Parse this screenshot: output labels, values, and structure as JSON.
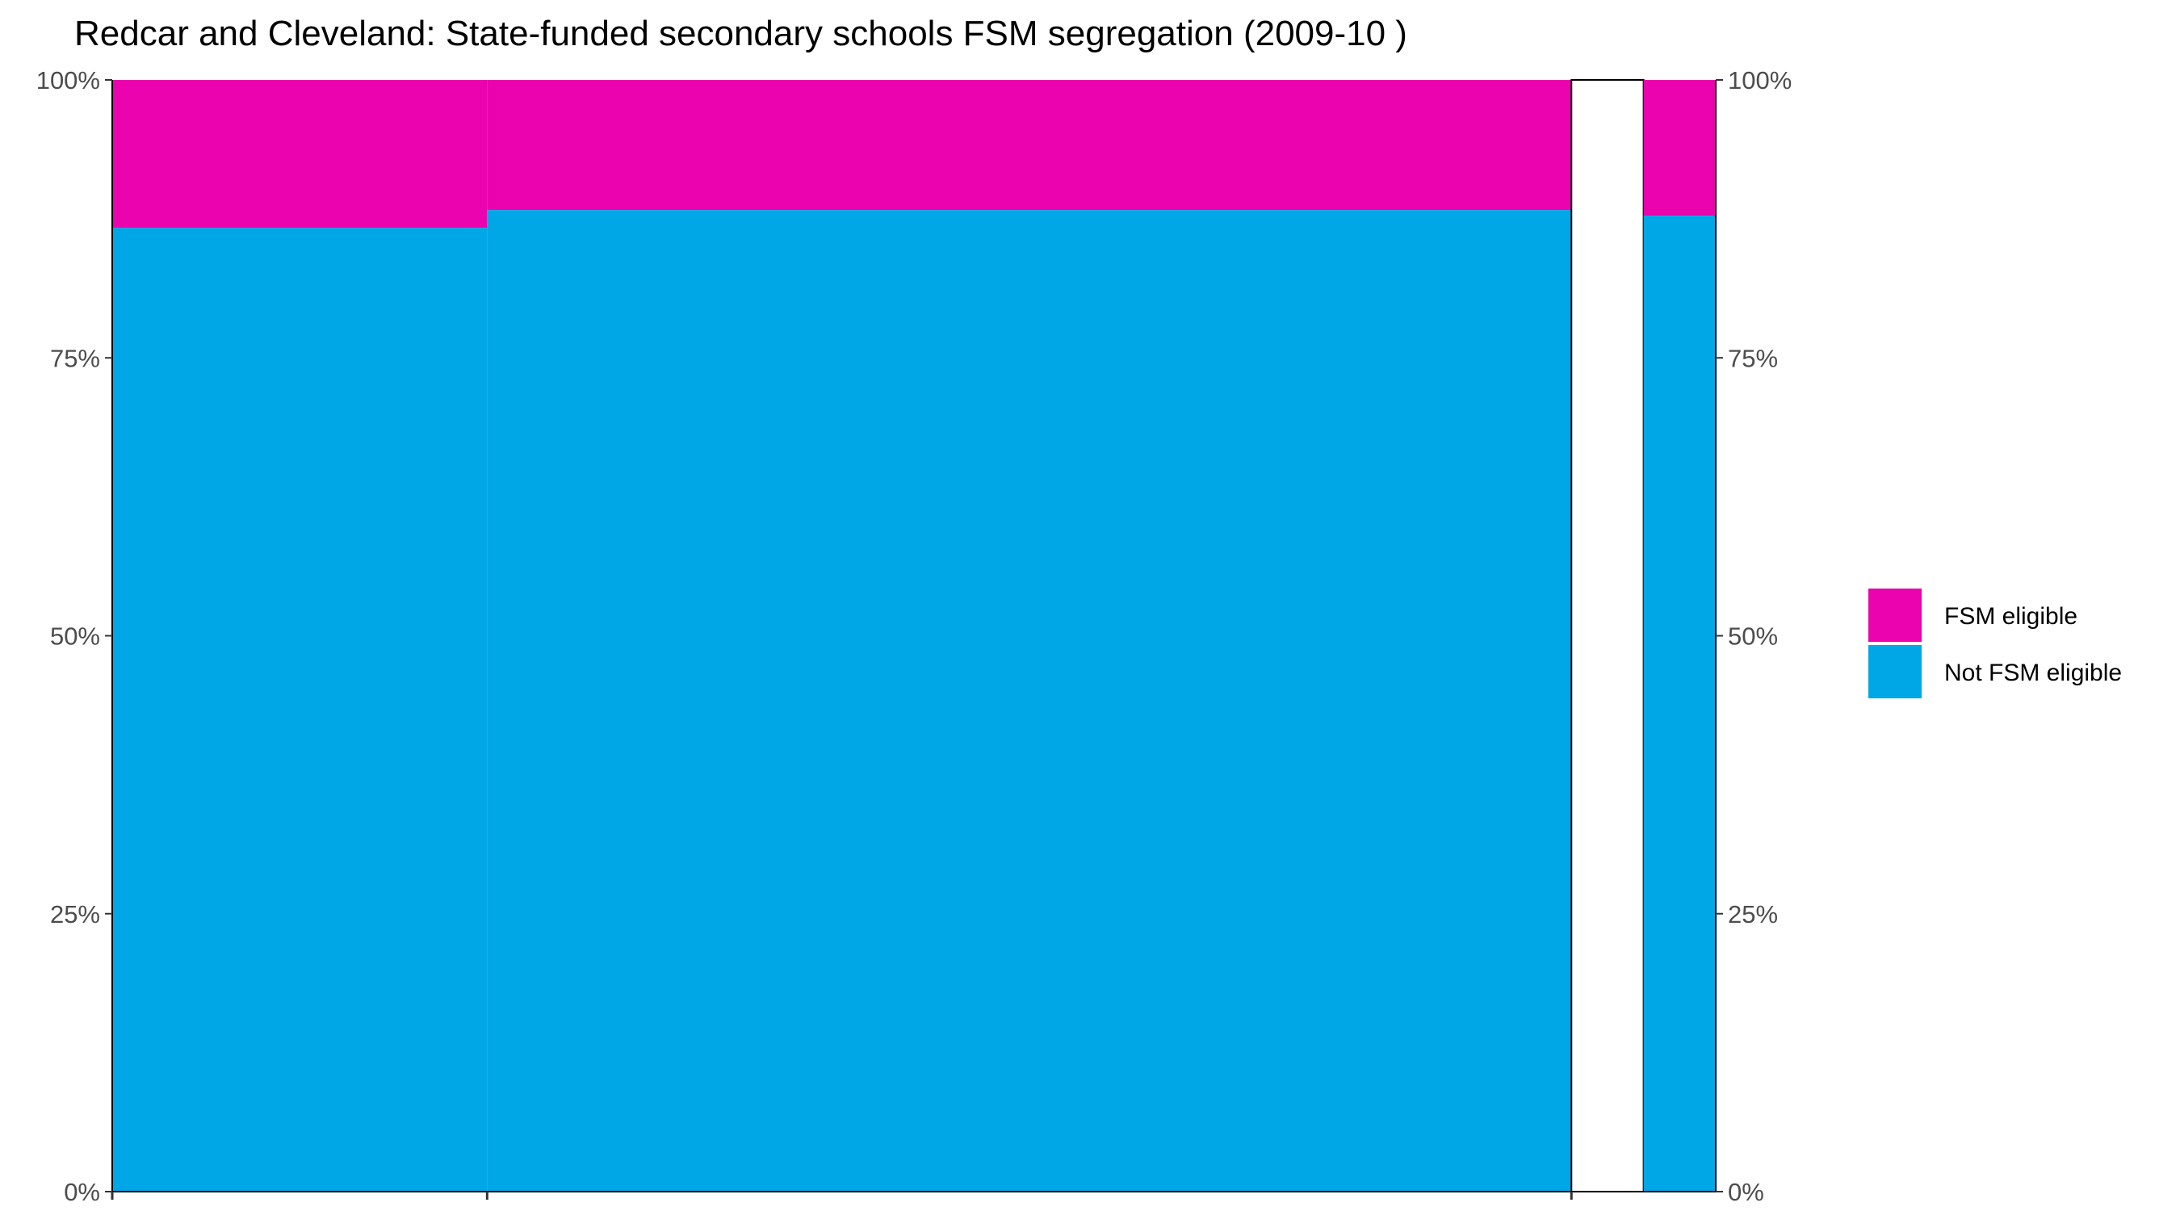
{
  "chart_data": {
    "type": "bar",
    "title": "Redcar and Cleveland: State-funded secondary schools FSM segregation (2009-10 )",
    "xlabel": "",
    "ylabel": "",
    "ylim": [
      0,
      1
    ],
    "y_ticks": [
      "0%",
      "25%",
      "50%",
      "75%",
      "100%"
    ],
    "grid": false,
    "legend_position": "right",
    "columns": [
      {
        "share": 0.2338,
        "fsm": 0.133,
        "not_fsm": 0.867,
        "filled": true
      },
      {
        "share": 0.6762,
        "fsm": 0.117,
        "not_fsm": 0.883,
        "filled": true
      },
      {
        "share": 0.045,
        "fsm": 0,
        "not_fsm": 0,
        "filled": false
      },
      {
        "share": 0.045,
        "fsm": 0.122,
        "not_fsm": 0.878,
        "filled": true
      }
    ],
    "series": [
      {
        "name": "FSM eligible",
        "color": "#EA03AE"
      },
      {
        "name": "Not FSM eligible",
        "color": "#00A7E6"
      }
    ]
  }
}
